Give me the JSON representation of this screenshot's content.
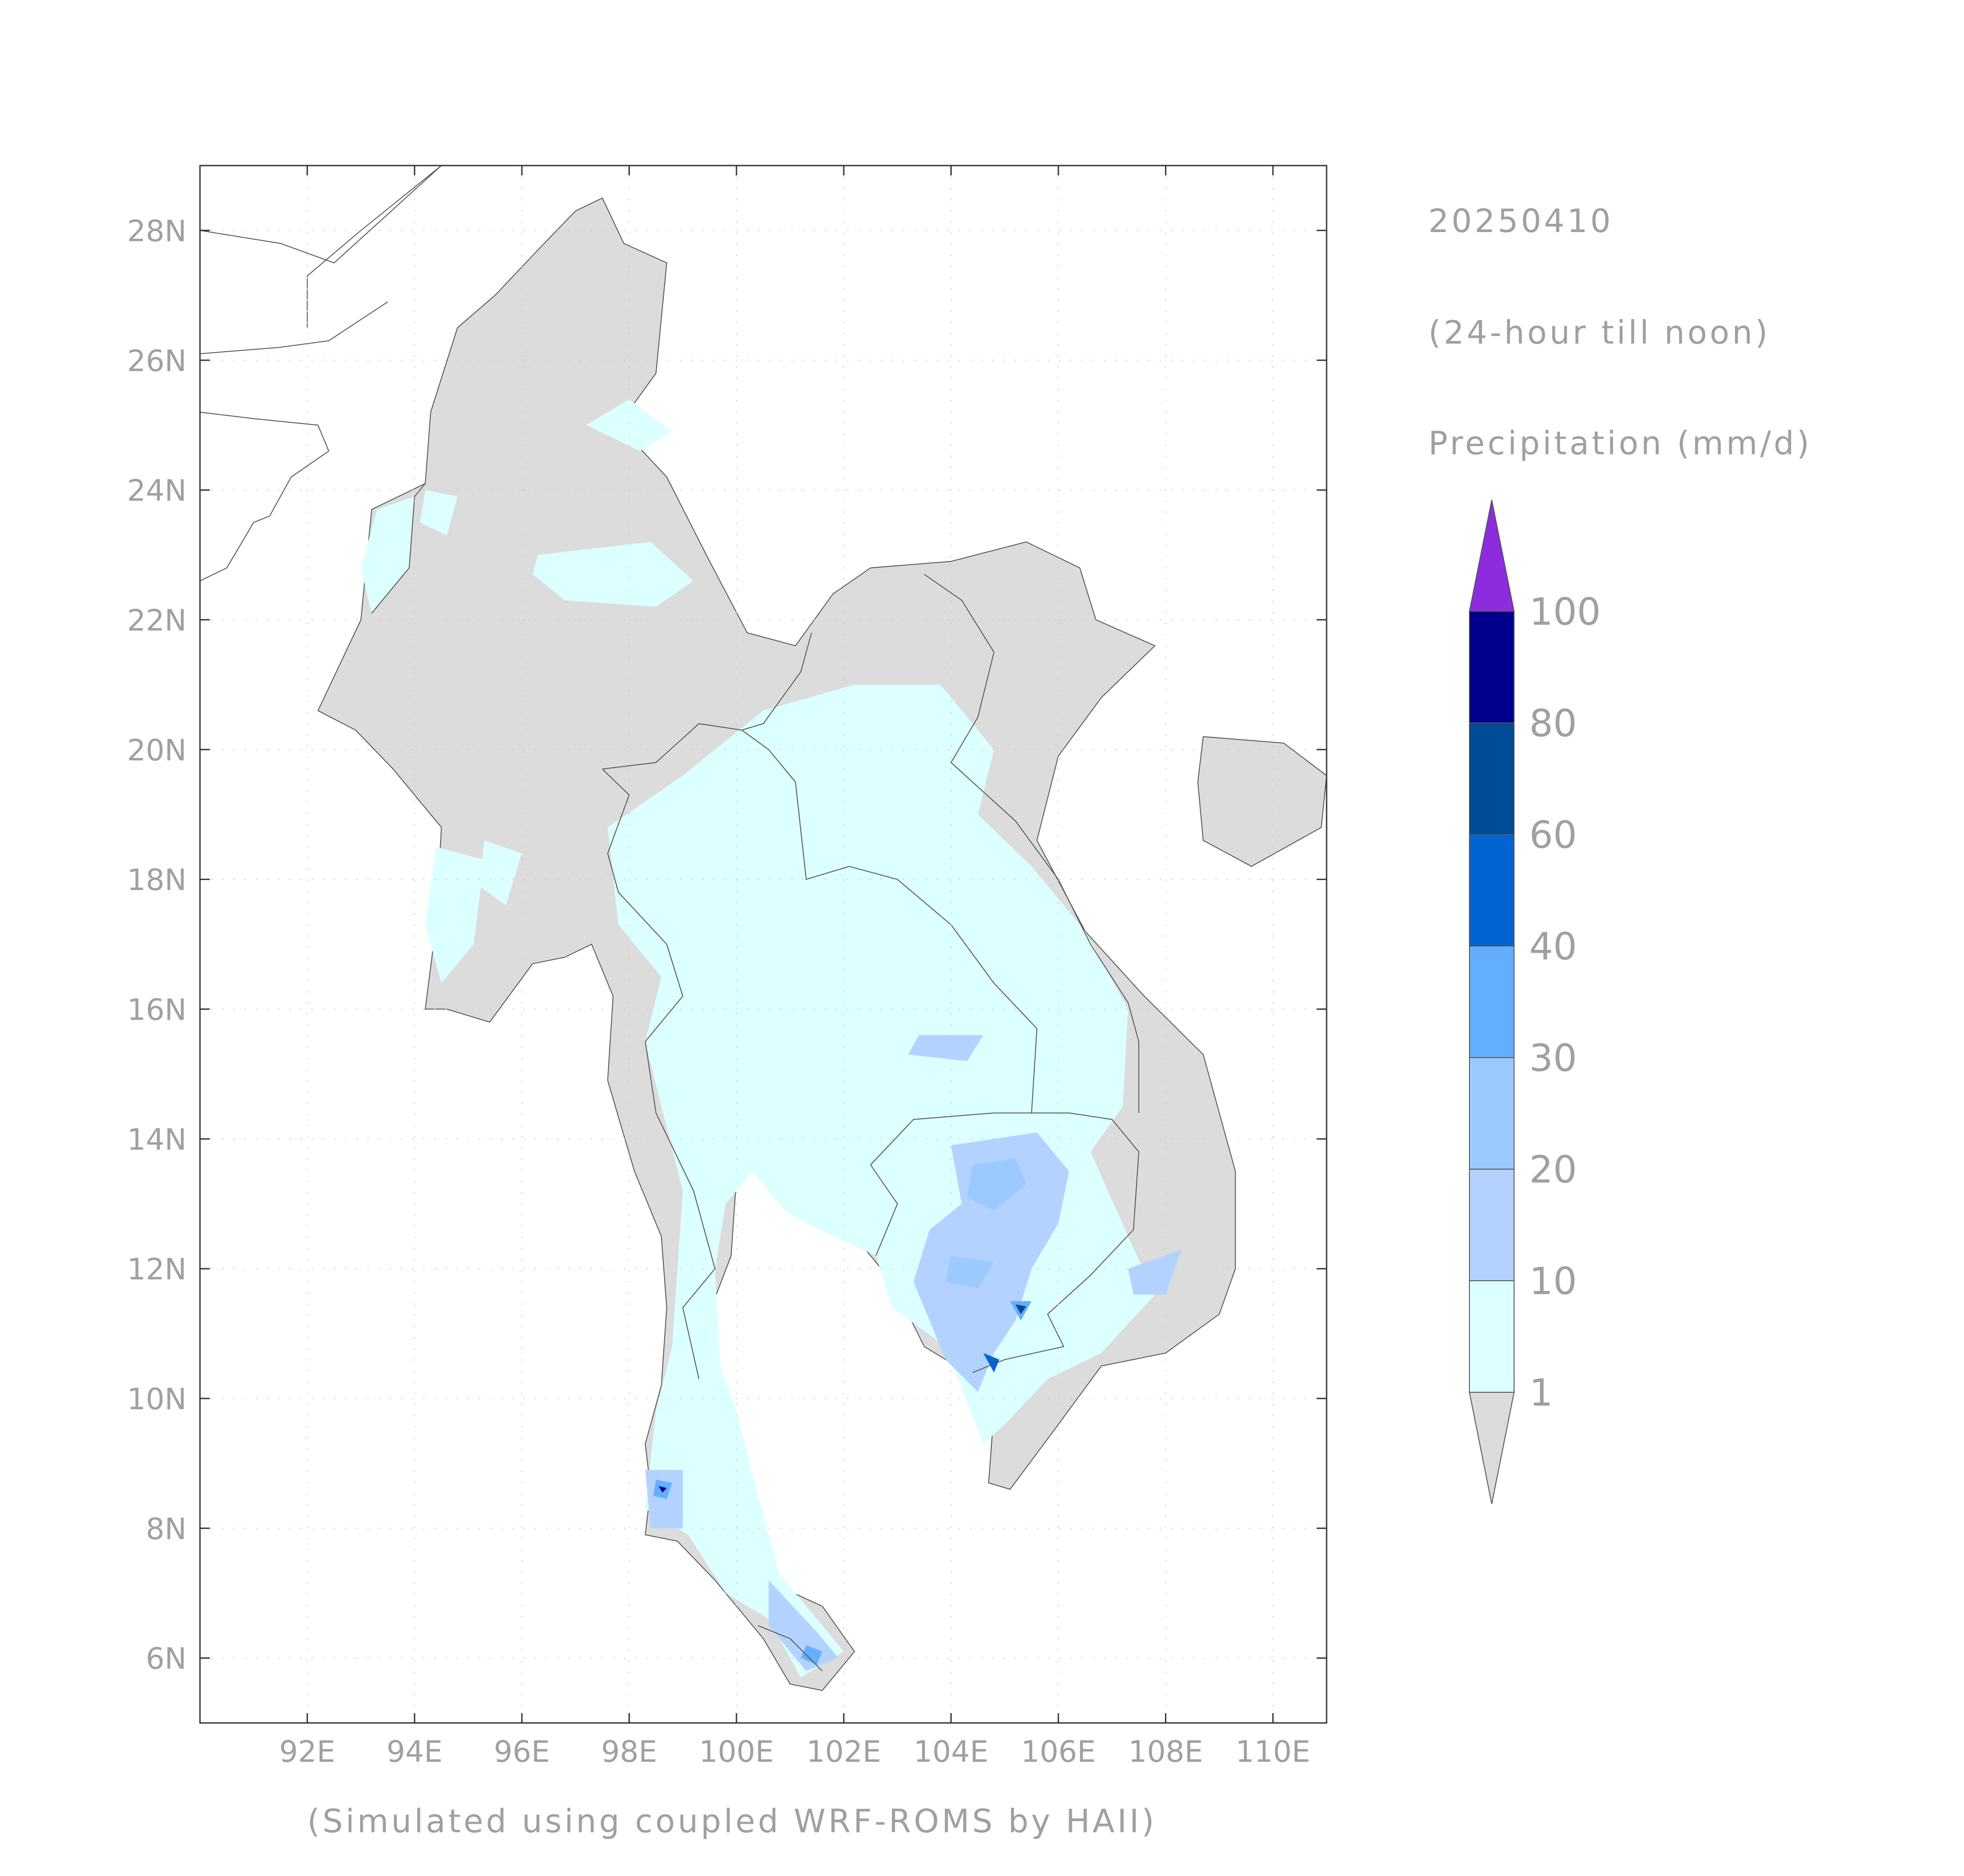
{
  "header": {
    "date": "20250410",
    "period": "(24-hour till noon)",
    "variable": "Precipitation (mm/d)"
  },
  "footer": {
    "credit": "(Simulated using coupled WRF-ROMS by HAII)"
  },
  "map": {
    "lon_range": [
      90.0,
      111.0
    ],
    "lat_range": [
      5.0,
      29.0
    ],
    "lon_ticks": [
      "92E",
      "94E",
      "96E",
      "98E",
      "100E",
      "102E",
      "104E",
      "106E",
      "108E",
      "110E"
    ],
    "lon_tick_values": [
      92,
      94,
      96,
      98,
      100,
      102,
      104,
      106,
      108,
      110
    ],
    "lat_ticks": [
      "6N",
      "8N",
      "10N",
      "12N",
      "14N",
      "16N",
      "18N",
      "20N",
      "22N",
      "24N",
      "26N",
      "28N"
    ],
    "lat_tick_values": [
      6,
      8,
      10,
      12,
      14,
      16,
      18,
      20,
      22,
      24,
      26,
      28
    ],
    "grid": "dotted",
    "land_color": "#dcdcdc",
    "ocean_color": "#ffffff",
    "border_color": "#555555"
  },
  "legend": {
    "position": "right",
    "labels": [
      "1",
      "10",
      "20",
      "30",
      "40",
      "60",
      "80",
      "100"
    ],
    "colors": [
      "#dcdcdc",
      "#dcffff",
      "#b4d2ff",
      "#9ccaff",
      "#64aeff",
      "#0064d2",
      "#004b96",
      "#00008c",
      "#8c2cdc"
    ],
    "under_color": "#dcdcdc",
    "over_color": "#8c2cdc"
  },
  "rain_areas": [
    {
      "level": 1,
      "polygon": [
        [
          97.6,
          18.8
        ],
        [
          99.0,
          19.6
        ],
        [
          100.5,
          20.6
        ],
        [
          102.2,
          21.0
        ],
        [
          103.8,
          21.0
        ],
        [
          104.8,
          20.0
        ],
        [
          104.5,
          19.0
        ],
        [
          105.5,
          18.2
        ],
        [
          106.5,
          17.2
        ],
        [
          107.3,
          16.0
        ],
        [
          107.2,
          14.5
        ],
        [
          106.6,
          13.8
        ],
        [
          107.3,
          12.5
        ],
        [
          107.8,
          11.6
        ],
        [
          106.8,
          10.7
        ],
        [
          105.8,
          10.3
        ],
        [
          105.0,
          9.6
        ],
        [
          104.6,
          9.3
        ],
        [
          103.9,
          10.8
        ],
        [
          102.9,
          11.4
        ],
        [
          102.6,
          12.2
        ],
        [
          101.3,
          12.7
        ],
        [
          100.9,
          12.9
        ],
        [
          100.3,
          13.5
        ],
        [
          99.8,
          13.0
        ],
        [
          99.6,
          12.0
        ],
        [
          99.7,
          10.5
        ],
        [
          100.0,
          9.8
        ],
        [
          100.4,
          8.5
        ],
        [
          100.8,
          7.3
        ],
        [
          101.5,
          6.6
        ],
        [
          102.0,
          6.1
        ],
        [
          101.2,
          5.7
        ],
        [
          100.6,
          6.6
        ],
        [
          99.8,
          7.0
        ],
        [
          99.1,
          7.9
        ],
        [
          98.3,
          8.3
        ],
        [
          98.5,
          9.8
        ],
        [
          98.8,
          10.8
        ],
        [
          98.9,
          12.0
        ],
        [
          99.0,
          13.2
        ],
        [
          98.6,
          14.5
        ],
        [
          98.3,
          15.5
        ],
        [
          98.6,
          16.5
        ],
        [
          97.8,
          17.3
        ]
      ]
    },
    {
      "level": 1,
      "polygon": [
        [
          93.3,
          23.7
        ],
        [
          94.0,
          23.9
        ],
        [
          93.9,
          22.8
        ],
        [
          93.2,
          22.1
        ],
        [
          93.0,
          22.8
        ]
      ]
    },
    {
      "level": 1,
      "polygon": [
        [
          96.3,
          23.0
        ],
        [
          98.4,
          23.2
        ],
        [
          99.2,
          22.6
        ],
        [
          98.5,
          22.2
        ],
        [
          96.8,
          22.3
        ],
        [
          96.2,
          22.7
        ]
      ]
    },
    {
      "level": 1,
      "polygon": [
        [
          94.2,
          24.0
        ],
        [
          94.8,
          23.9
        ],
        [
          94.6,
          23.3
        ],
        [
          94.1,
          23.5
        ]
      ]
    },
    {
      "level": 1,
      "polygon": [
        [
          94.4,
          18.5
        ],
        [
          95.3,
          18.3
        ],
        [
          95.1,
          17.0
        ],
        [
          94.5,
          16.4
        ],
        [
          94.2,
          17.3
        ]
      ]
    },
    {
      "level": 1,
      "polygon": [
        [
          97.2,
          25.0
        ],
        [
          98.0,
          25.4
        ],
        [
          98.8,
          24.9
        ],
        [
          98.2,
          24.6
        ]
      ]
    },
    {
      "level": 1,
      "polygon": [
        [
          95.3,
          18.6
        ],
        [
          96.0,
          18.4
        ],
        [
          95.7,
          17.6
        ],
        [
          95.2,
          17.9
        ]
      ]
    },
    {
      "level": 2,
      "polygon": [
        [
          104.0,
          13.9
        ],
        [
          105.6,
          14.1
        ],
        [
          106.2,
          13.5
        ],
        [
          106.0,
          12.7
        ],
        [
          105.5,
          12.0
        ],
        [
          105.2,
          11.2
        ],
        [
          104.8,
          10.7
        ],
        [
          104.5,
          10.1
        ],
        [
          103.9,
          10.6
        ],
        [
          103.6,
          11.2
        ],
        [
          103.3,
          11.8
        ],
        [
          103.6,
          12.6
        ],
        [
          104.2,
          13.0
        ]
      ]
    },
    {
      "level": 2,
      "polygon": [
        [
          100.6,
          7.2
        ],
        [
          101.5,
          6.4
        ],
        [
          101.9,
          6.0
        ],
        [
          101.3,
          5.8
        ],
        [
          100.6,
          6.5
        ]
      ]
    },
    {
      "level": 2,
      "polygon": [
        [
          103.4,
          15.6
        ],
        [
          104.6,
          15.6
        ],
        [
          104.3,
          15.2
        ],
        [
          103.2,
          15.3
        ]
      ]
    },
    {
      "level": 2,
      "polygon": [
        [
          107.3,
          12.0
        ],
        [
          108.3,
          12.3
        ],
        [
          108.0,
          11.6
        ],
        [
          107.4,
          11.6
        ]
      ]
    },
    {
      "level": 2,
      "polygon": [
        [
          98.3,
          8.9
        ],
        [
          99.0,
          8.9
        ],
        [
          99.0,
          8.0
        ],
        [
          98.4,
          8.0
        ]
      ]
    },
    {
      "level": 3,
      "polygon": [
        [
          104.4,
          13.6
        ],
        [
          105.2,
          13.7
        ],
        [
          105.4,
          13.3
        ],
        [
          104.8,
          12.9
        ],
        [
          104.3,
          13.1
        ]
      ]
    },
    {
      "level": 3,
      "polygon": [
        [
          104.0,
          12.2
        ],
        [
          104.8,
          12.1
        ],
        [
          104.5,
          11.7
        ],
        [
          103.9,
          11.8
        ]
      ]
    },
    {
      "level": 4,
      "polygon": [
        [
          105.1,
          11.5
        ],
        [
          105.5,
          11.5
        ],
        [
          105.3,
          11.2
        ]
      ]
    },
    {
      "level": 4,
      "polygon": [
        [
          98.5,
          8.75
        ],
        [
          98.8,
          8.7
        ],
        [
          98.7,
          8.45
        ],
        [
          98.45,
          8.5
        ]
      ]
    },
    {
      "level": 4,
      "polygon": [
        [
          101.3,
          6.2
        ],
        [
          101.6,
          6.1
        ],
        [
          101.5,
          5.9
        ],
        [
          101.2,
          6.0
        ]
      ]
    },
    {
      "level": 5,
      "polygon": [
        [
          104.6,
          10.7
        ],
        [
          104.9,
          10.6
        ],
        [
          104.8,
          10.4
        ]
      ]
    },
    {
      "level": 6,
      "polygon": [
        [
          105.2,
          11.45
        ],
        [
          105.4,
          11.42
        ],
        [
          105.3,
          11.3
        ]
      ]
    },
    {
      "level": 7,
      "polygon": [
        [
          98.55,
          8.65
        ],
        [
          98.7,
          8.62
        ],
        [
          98.62,
          8.55
        ]
      ]
    }
  ],
  "land_polygons": [
    {
      "polygon": [
        [
          92.2,
          20.6
        ],
        [
          93.0,
          22.0
        ],
        [
          93.2,
          23.7
        ],
        [
          94.2,
          24.1
        ],
        [
          94.3,
          25.2
        ],
        [
          94.8,
          26.5
        ],
        [
          95.5,
          27.0
        ],
        [
          96.3,
          27.7
        ],
        [
          97.0,
          28.3
        ],
        [
          97.5,
          28.5
        ],
        [
          97.9,
          27.8
        ],
        [
          98.7,
          27.5
        ],
        [
          98.5,
          25.8
        ],
        [
          97.8,
          25.0
        ],
        [
          98.7,
          24.2
        ],
        [
          99.5,
          22.9
        ],
        [
          100.2,
          21.8
        ],
        [
          101.1,
          21.6
        ],
        [
          101.8,
          22.4
        ],
        [
          102.5,
          22.8
        ],
        [
          104.0,
          22.9
        ],
        [
          105.4,
          23.2
        ],
        [
          106.4,
          22.8
        ],
        [
          106.7,
          22.0
        ],
        [
          107.8,
          21.6
        ],
        [
          106.8,
          20.8
        ],
        [
          106.0,
          19.9
        ],
        [
          105.6,
          18.6
        ],
        [
          106.5,
          17.2
        ],
        [
          107.6,
          16.2
        ],
        [
          108.7,
          15.3
        ],
        [
          109.3,
          13.5
        ],
        [
          109.3,
          12.0
        ],
        [
          109.0,
          11.3
        ],
        [
          108.0,
          10.7
        ],
        [
          106.8,
          10.5
        ],
        [
          106.0,
          9.6
        ],
        [
          105.1,
          8.6
        ],
        [
          104.7,
          8.7
        ],
        [
          104.8,
          9.8
        ],
        [
          104.3,
          10.4
        ],
        [
          103.5,
          10.8
        ],
        [
          102.9,
          11.8
        ],
        [
          102.3,
          12.4
        ],
        [
          101.4,
          12.7
        ],
        [
          100.9,
          13.0
        ],
        [
          100.4,
          13.6
        ],
        [
          100.0,
          13.4
        ],
        [
          99.9,
          12.2
        ],
        [
          99.3,
          10.9
        ],
        [
          99.3,
          9.7
        ],
        [
          99.9,
          9.2
        ],
        [
          100.4,
          7.8
        ],
        [
          100.8,
          7.1
        ],
        [
          101.6,
          6.8
        ],
        [
          102.2,
          6.1
        ],
        [
          101.6,
          5.5
        ],
        [
          101.0,
          5.6
        ],
        [
          100.5,
          6.3
        ],
        [
          100.1,
          6.7
        ],
        [
          99.6,
          7.2
        ],
        [
          98.9,
          7.8
        ],
        [
          98.3,
          7.9
        ],
        [
          98.4,
          8.6
        ],
        [
          98.3,
          9.3
        ],
        [
          98.6,
          10.2
        ],
        [
          98.7,
          11.4
        ],
        [
          98.6,
          12.5
        ],
        [
          98.1,
          13.5
        ],
        [
          97.6,
          14.9
        ],
        [
          97.7,
          16.2
        ],
        [
          97.3,
          17.0
        ],
        [
          96.8,
          16.8
        ],
        [
          96.2,
          16.7
        ],
        [
          95.4,
          15.8
        ],
        [
          94.6,
          16.0
        ],
        [
          94.2,
          16.0
        ],
        [
          94.4,
          17.3
        ],
        [
          94.5,
          18.8
        ],
        [
          93.6,
          19.7
        ],
        [
          92.9,
          20.3
        ]
      ]
    },
    {
      "polygon": [
        [
          108.7,
          20.2
        ],
        [
          110.2,
          20.1
        ],
        [
          111.0,
          19.6
        ],
        [
          110.9,
          18.8
        ],
        [
          109.6,
          18.2
        ],
        [
          108.7,
          18.6
        ],
        [
          108.6,
          19.5
        ]
      ]
    },
    {
      "polygon": [
        [
          101.3,
          5.0
        ],
        [
          101.8,
          5.0
        ],
        [
          102.1,
          4.7
        ],
        [
          103.0,
          5.0
        ],
        [
          103.5,
          4.5
        ],
        [
          103.6,
          5.0
        ],
        [
          101.0,
          5.0
        ]
      ]
    }
  ],
  "borders": [
    {
      "points": [
        [
          93.2,
          22.1
        ],
        [
          93.9,
          22.8
        ],
        [
          94.0,
          23.9
        ],
        [
          94.2,
          24.1
        ]
      ]
    },
    {
      "points": [
        [
          97.5,
          19.7
        ],
        [
          98.5,
          19.8
        ],
        [
          99.3,
          20.4
        ],
        [
          100.1,
          20.3
        ],
        [
          100.5,
          20.4
        ],
        [
          101.2,
          21.2
        ],
        [
          101.4,
          21.8
        ]
      ]
    },
    {
      "points": [
        [
          100.1,
          20.3
        ],
        [
          100.6,
          20.0
        ],
        [
          101.1,
          19.5
        ],
        [
          101.3,
          18.0
        ],
        [
          102.1,
          18.2
        ],
        [
          103.0,
          18.0
        ],
        [
          104.0,
          17.3
        ],
        [
          104.8,
          16.4
        ],
        [
          105.6,
          15.7
        ],
        [
          105.5,
          14.4
        ]
      ]
    },
    {
      "points": [
        [
          98.3,
          15.5
        ],
        [
          99.0,
          16.2
        ],
        [
          98.7,
          17.0
        ],
        [
          97.8,
          17.8
        ],
        [
          97.6,
          18.4
        ],
        [
          98.0,
          19.3
        ],
        [
          97.5,
          19.7
        ]
      ]
    },
    {
      "points": [
        [
          102.6,
          12.2
        ],
        [
          103.0,
          13.0
        ],
        [
          102.5,
          13.6
        ],
        [
          103.3,
          14.3
        ],
        [
          104.8,
          14.4
        ],
        [
          105.5,
          14.4
        ],
        [
          106.2,
          14.4
        ],
        [
          107.0,
          14.3
        ],
        [
          107.5,
          13.8
        ],
        [
          107.4,
          12.6
        ],
        [
          106.6,
          11.9
        ],
        [
          105.8,
          11.3
        ],
        [
          106.1,
          10.8
        ],
        [
          105.0,
          10.6
        ],
        [
          104.4,
          10.4
        ]
      ]
    },
    {
      "points": [
        [
          99.3,
          10.3
        ],
        [
          99.0,
          11.4
        ],
        [
          99.6,
          12.0
        ],
        [
          99.2,
          13.2
        ],
        [
          98.5,
          14.4
        ],
        [
          98.3,
          15.5
        ]
      ]
    },
    {
      "points": [
        [
          100.4,
          6.5
        ],
        [
          101.0,
          6.3
        ],
        [
          101.6,
          5.8
        ]
      ]
    },
    {
      "points": [
        [
          103.5,
          22.7
        ],
        [
          104.2,
          22.3
        ],
        [
          104.8,
          21.5
        ],
        [
          104.5,
          20.5
        ],
        [
          104.0,
          19.8
        ],
        [
          105.2,
          18.9
        ],
        [
          106.0,
          18.0
        ],
        [
          106.6,
          17.0
        ],
        [
          107.3,
          16.1
        ],
        [
          107.5,
          15.5
        ],
        [
          107.5,
          14.4
        ]
      ]
    },
    {
      "points": [
        [
          92.0,
          26.5
        ],
        [
          92.0,
          27.3
        ],
        [
          93.0,
          28.0
        ],
        [
          94.5,
          29.0
        ]
      ]
    },
    {
      "points": [
        [
          90.0,
          28.0
        ],
        [
          91.5,
          27.8
        ],
        [
          92.5,
          27.5
        ],
        [
          94.5,
          29.0
        ]
      ]
    },
    {
      "points": [
        [
          90.0,
          26.1
        ],
        [
          91.5,
          26.2
        ],
        [
          92.4,
          26.3
        ],
        [
          93.5,
          26.9
        ]
      ]
    },
    {
      "points": [
        [
          90.0,
          25.2
        ],
        [
          91.0,
          25.1
        ],
        [
          92.2,
          25.0
        ],
        [
          92.4,
          24.6
        ],
        [
          91.7,
          24.2
        ],
        [
          91.3,
          23.6
        ]
      ]
    },
    {
      "points": [
        [
          90.0,
          22.6
        ],
        [
          90.5,
          22.8
        ],
        [
          91.0,
          23.5
        ],
        [
          91.3,
          23.6
        ]
      ]
    }
  ]
}
